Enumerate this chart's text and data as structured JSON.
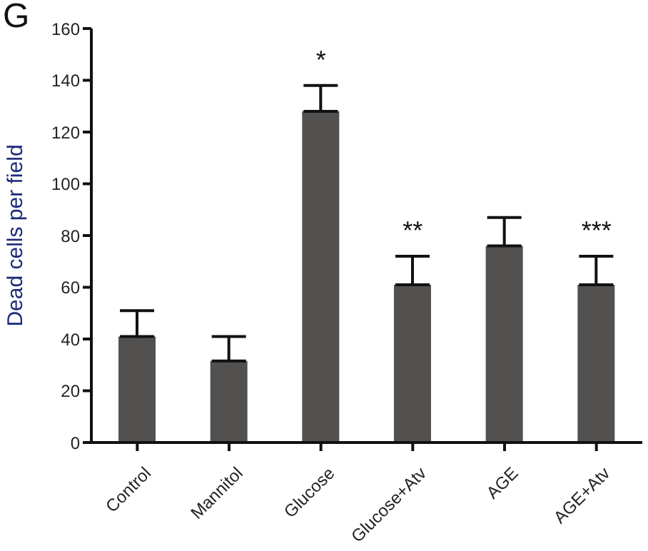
{
  "chart_data": {
    "type": "bar",
    "title": "G",
    "ylabel": "Dead cells  per field",
    "categories": [
      "Control",
      "Mannitol",
      "Glucose",
      "Glucose+Atv",
      "AGE",
      "AGE+Atv"
    ],
    "values": [
      41,
      31.5,
      128,
      61,
      76,
      61
    ],
    "errors": [
      [
        41,
        51
      ],
      [
        31.5,
        41
      ],
      [
        128,
        138
      ],
      [
        61,
        72
      ],
      [
        76,
        87
      ],
      [
        61,
        72
      ]
    ],
    "color": "#525150",
    "ylim": [
      0,
      160
    ],
    "yticks": [
      0,
      20,
      40,
      60,
      80,
      100,
      120,
      140,
      160
    ],
    "grid": false,
    "annotations": [
      {
        "text": "*",
        "x": "Glucose",
        "y": 138
      },
      {
        "text": "**",
        "x": "Glucose+Atv",
        "y": 72
      },
      {
        "text": "***",
        "x": "AGE+Atv",
        "y": 72
      }
    ]
  }
}
